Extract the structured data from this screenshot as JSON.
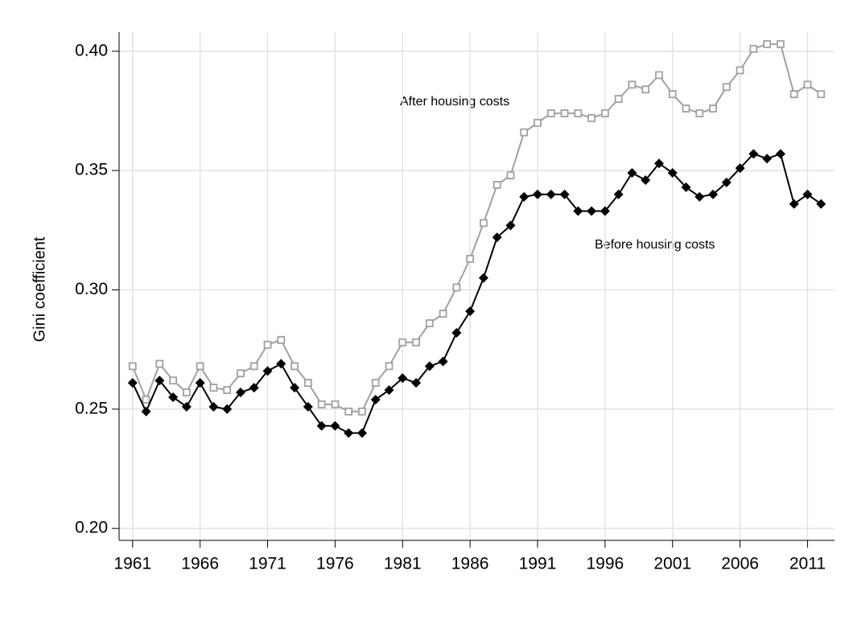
{
  "chart_data": {
    "type": "line",
    "y_label": "Gini coefficient",
    "x": [
      1961,
      1962,
      1963,
      1964,
      1965,
      1966,
      1967,
      1968,
      1969,
      1970,
      1971,
      1972,
      1973,
      1974,
      1975,
      1976,
      1977,
      1978,
      1979,
      1980,
      1981,
      1982,
      1983,
      1984,
      1985,
      1986,
      1987,
      1988,
      1989,
      1990,
      1991,
      1992,
      1993,
      1994,
      1995,
      1996,
      1997,
      1998,
      1999,
      2000,
      2001,
      2002,
      2003,
      2004,
      2005,
      2006,
      2007,
      2008,
      2009,
      2010,
      2011,
      2012
    ],
    "series": [
      {
        "name": "After housing costs",
        "color": "#a0a0a0",
        "marker": "open-square",
        "values": [
          0.268,
          0.254,
          0.269,
          0.262,
          0.257,
          0.268,
          0.259,
          0.258,
          0.265,
          0.268,
          0.277,
          0.279,
          0.268,
          0.261,
          0.252,
          0.252,
          0.249,
          0.249,
          0.261,
          0.268,
          0.278,
          0.278,
          0.286,
          0.29,
          0.301,
          0.313,
          0.328,
          0.344,
          0.348,
          0.366,
          0.37,
          0.374,
          0.374,
          0.374,
          0.372,
          0.374,
          0.38,
          0.386,
          0.384,
          0.39,
          0.382,
          0.376,
          0.374,
          0.376,
          0.385,
          0.392,
          0.401,
          0.403,
          0.403,
          0.382,
          0.386,
          0.382
        ]
      },
      {
        "name": "Before housing costs",
        "color": "#000000",
        "marker": "filled-diamond",
        "values": [
          0.261,
          0.249,
          0.262,
          0.255,
          0.251,
          0.261,
          0.251,
          0.25,
          0.257,
          0.259,
          0.266,
          0.269,
          0.259,
          0.251,
          0.243,
          0.243,
          0.24,
          0.24,
          0.254,
          0.258,
          0.263,
          0.261,
          0.268,
          0.27,
          0.282,
          0.291,
          0.305,
          0.322,
          0.327,
          0.339,
          0.34,
          0.34,
          0.34,
          0.333,
          0.333,
          0.333,
          0.34,
          0.349,
          0.346,
          0.353,
          0.349,
          0.343,
          0.339,
          0.34,
          0.345,
          0.351,
          0.357,
          0.355,
          0.357,
          0.336,
          0.34,
          0.336
        ]
      }
    ],
    "xlim": [
      1960,
      2013
    ],
    "xticks": [
      1961,
      1966,
      1971,
      1976,
      1981,
      1986,
      1991,
      1996,
      2001,
      2006,
      2011
    ],
    "ylim": [
      0.195,
      0.408
    ],
    "yticks": [
      {
        "value": 0.2,
        "label": "0.20"
      },
      {
        "value": 0.25,
        "label": "0.25"
      },
      {
        "value": 0.3,
        "label": "0.30"
      },
      {
        "value": 0.35,
        "label": "0.35"
      },
      {
        "value": 0.4,
        "label": "0.40"
      }
    ],
    "grid": true
  }
}
